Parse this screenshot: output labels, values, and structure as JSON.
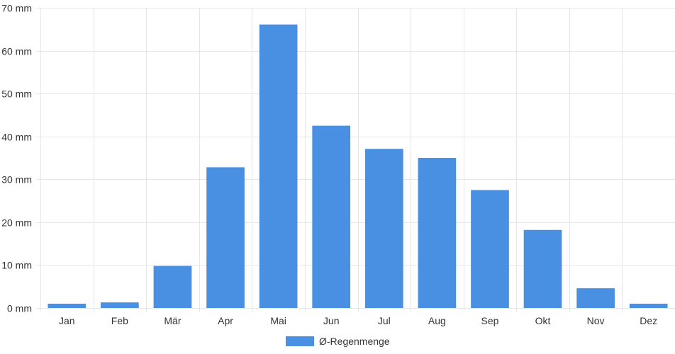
{
  "chart_data": {
    "type": "bar",
    "categories": [
      "Jan",
      "Feb",
      "Mär",
      "Apr",
      "Mai",
      "Jun",
      "Jul",
      "Aug",
      "Sep",
      "Okt",
      "Nov",
      "Dez"
    ],
    "series": [
      {
        "name": "Ø-Regenmenge",
        "color": "#4a90e2",
        "values": [
          1.0,
          1.3,
          9.8,
          32.8,
          66.1,
          42.5,
          37.1,
          35.0,
          27.5,
          18.2,
          4.6,
          1.0
        ]
      }
    ],
    "ylim": [
      0,
      70
    ],
    "y_ticks": [
      0,
      10,
      20,
      30,
      40,
      50,
      60,
      70
    ],
    "y_unit": "mm",
    "grid": true,
    "grid_color": "#e6e6e6",
    "legend_position": "bottom"
  }
}
